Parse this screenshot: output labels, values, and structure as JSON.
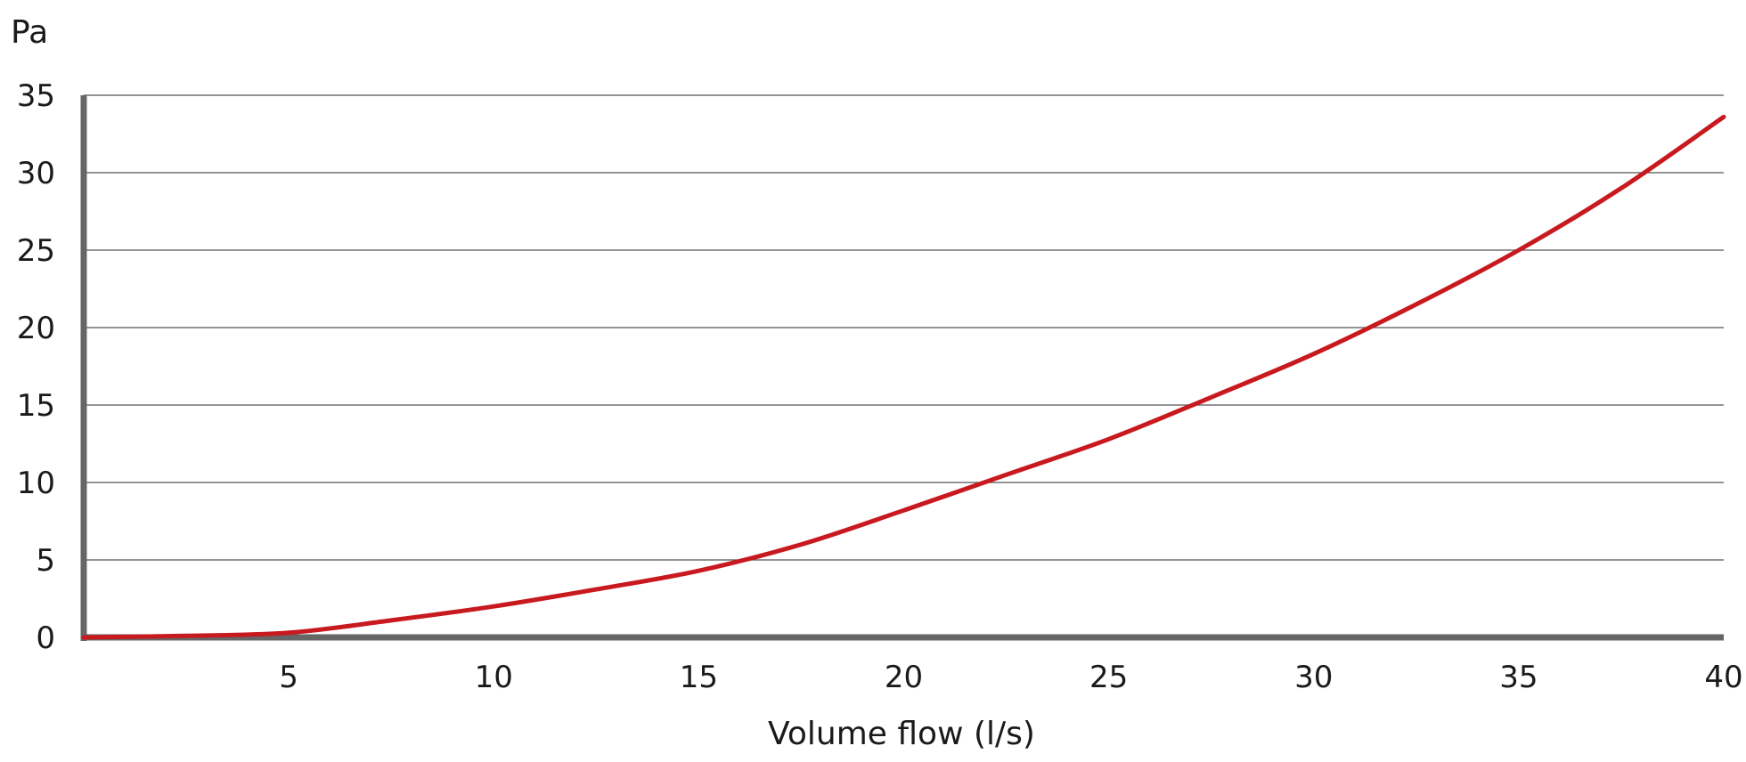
{
  "chart_data": {
    "type": "line",
    "title": "",
    "xlabel": "Volume flow (l/s)",
    "ylabel": "Pa",
    "xlim": [
      0,
      40
    ],
    "ylim": [
      0,
      35
    ],
    "x_ticks": [
      5,
      10,
      15,
      20,
      25,
      30,
      35,
      40
    ],
    "y_ticks": [
      0,
      5,
      10,
      15,
      20,
      25,
      30,
      35
    ],
    "grid": "horizontal",
    "series": [
      {
        "color": "#c8191f",
        "x": [
          0,
          2.5,
          5,
          7.5,
          10,
          12.5,
          15,
          17.5,
          20,
          22.5,
          25,
          27.5,
          30,
          32.5,
          35,
          37.5,
          40
        ],
        "y": [
          0,
          0.1,
          0.3,
          1.1,
          2.0,
          3.1,
          4.3,
          6.0,
          8.2,
          10.5,
          12.8,
          15.5,
          18.3,
          21.5,
          25.0,
          29.0,
          33.6
        ]
      }
    ],
    "colors": {
      "axis": "#666666",
      "grid": "#555555",
      "text": "#1a1a1a"
    }
  }
}
